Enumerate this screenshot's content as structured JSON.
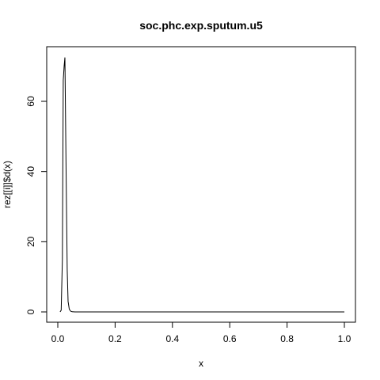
{
  "chart_data": {
    "type": "line",
    "title": "soc.phc.exp.sputum.u5",
    "xlabel": "x",
    "ylabel": "rez[[i]]$d(x)",
    "xlim": [
      0,
      1
    ],
    "ylim": [
      0,
      73
    ],
    "xticks": [
      0.0,
      0.2,
      0.4,
      0.6,
      0.8,
      1.0
    ],
    "xtick_labels": [
      "0.0",
      "0.2",
      "0.4",
      "0.6",
      "0.8",
      "1.0"
    ],
    "yticks": [
      0,
      20,
      40,
      60
    ],
    "ytick_labels": [
      "0",
      "20",
      "40",
      "60"
    ],
    "grid": false,
    "series": [
      {
        "x": [
          0.008,
          0.012,
          0.016,
          0.019,
          0.022,
          0.025,
          0.029,
          0.033,
          0.036,
          0.04,
          0.045,
          0.05,
          0.06,
          0.1,
          0.3,
          0.5,
          0.7,
          0.9,
          1.0
        ],
        "y": [
          0,
          0.5,
          15,
          66,
          70,
          72.5,
          40,
          12,
          3,
          0.8,
          0.2,
          0.05,
          0,
          0,
          0,
          0,
          0,
          0,
          0
        ]
      }
    ]
  }
}
